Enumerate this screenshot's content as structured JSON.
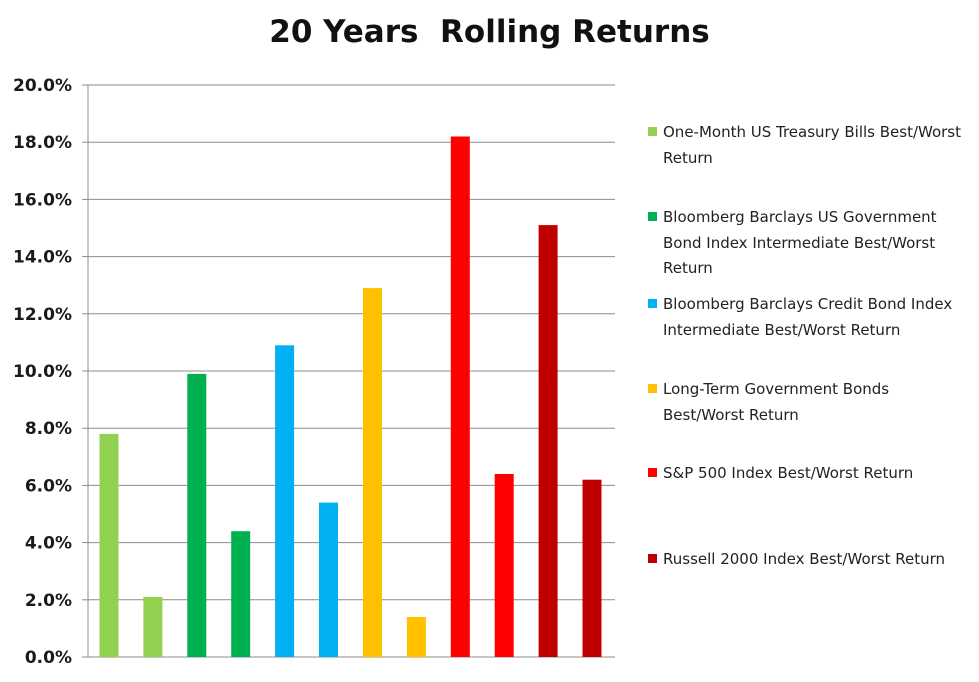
{
  "chart_data": {
    "type": "bar",
    "title": "20 Years  Rolling Returns",
    "ylim": [
      0,
      20
    ],
    "y_ticks": [
      "0.0%",
      "2.0%",
      "4.0%",
      "6.0%",
      "8.0%",
      "10.0%",
      "12.0%",
      "14.0%",
      "16.0%",
      "18.0%",
      "20.0%"
    ],
    "grid": true,
    "legend_position": "right",
    "series": [
      {
        "name": "One-Month US Treasury Bills Best/Worst Return",
        "color": "#92d050",
        "values": [
          7.8,
          2.1
        ]
      },
      {
        "name": "Bloomberg Barclays US Government Bond Index Intermediate Best/Worst Return",
        "color": "#00b050",
        "values": [
          9.9,
          4.4
        ]
      },
      {
        "name": "Bloomberg Barclays Credit Bond Index Intermediate Best/Worst Return",
        "color": "#00b0f0",
        "values": [
          10.9,
          5.4
        ]
      },
      {
        "name": "Long-Term Government Bonds Best/Worst Return",
        "color": "#ffc000",
        "values": [
          12.9,
          1.4
        ]
      },
      {
        "name": "S&P 500 Index Best/Worst Return",
        "color": "#ff0000",
        "values": [
          18.2,
          6.4
        ]
      },
      {
        "name": "Russell 2000 Index Best/Worst Return",
        "color": "#c00000",
        "values": [
          15.1,
          6.2
        ]
      }
    ]
  }
}
